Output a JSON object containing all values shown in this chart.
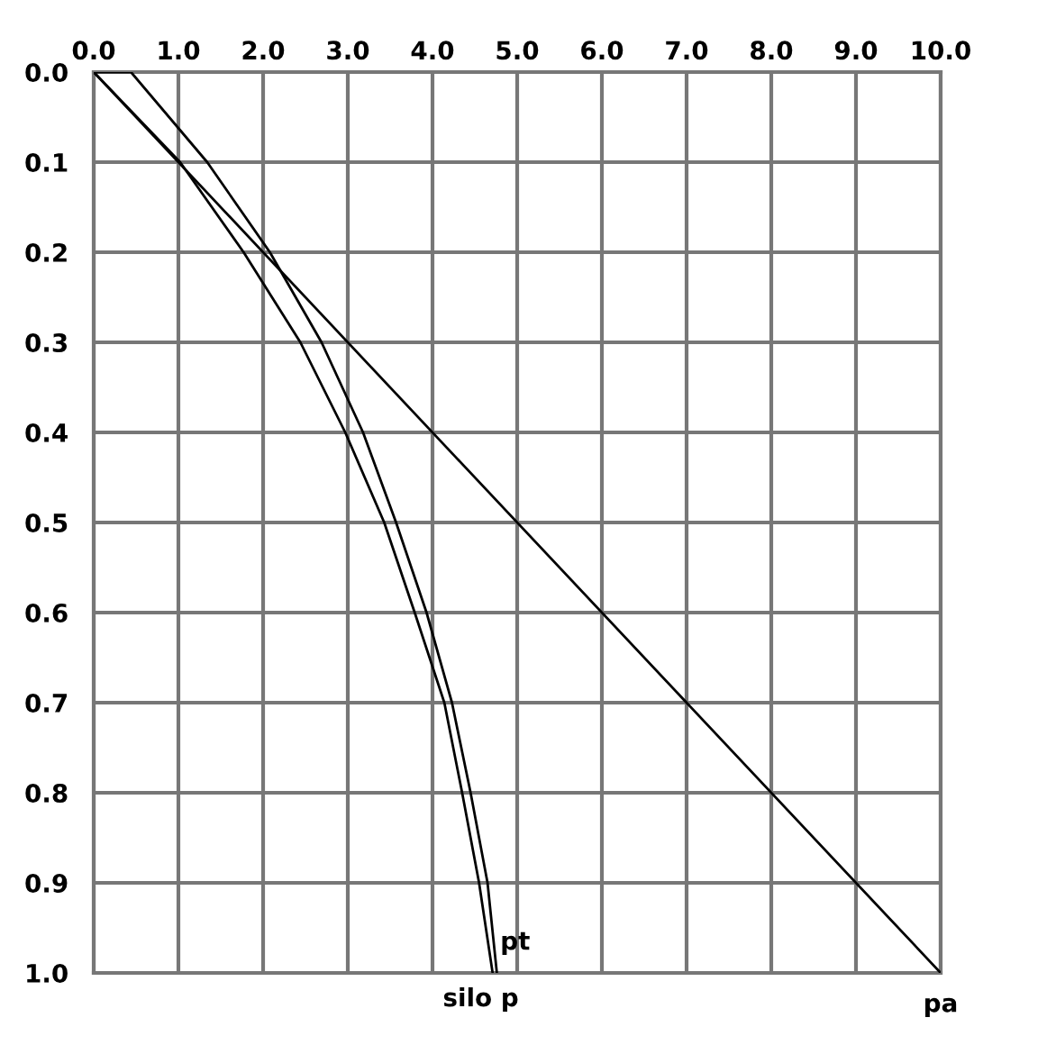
{
  "chart_data": {
    "type": "line",
    "xlim": [
      0,
      10
    ],
    "ylim": [
      1.0,
      0.0
    ],
    "xticks": [
      {
        "value": 0,
        "label": "0.0"
      },
      {
        "value": 1,
        "label": "1.0"
      },
      {
        "value": 2,
        "label": "2.0"
      },
      {
        "value": 3,
        "label": "3.0"
      },
      {
        "value": 4,
        "label": "4.0"
      },
      {
        "value": 5,
        "label": "5.0"
      },
      {
        "value": 6,
        "label": "6.0"
      },
      {
        "value": 7,
        "label": "7.0"
      },
      {
        "value": 8,
        "label": "8.0"
      },
      {
        "value": 9,
        "label": "9.0"
      },
      {
        "value": 10,
        "label": "10.0"
      }
    ],
    "yticks": [
      {
        "value": 0,
        "label": "0.0"
      },
      0.1,
      0.2,
      0.3,
      0.4,
      0.5,
      0.6,
      0.7,
      0.8,
      0.9,
      {
        "value": 1,
        "label": "1.0"
      }
    ],
    "grid": true,
    "legend": false,
    "marker": "none",
    "line_style": "solid",
    "series": [
      {
        "color": "#000000",
        "x": [
          0,
          0.44,
          1.34,
          2.08,
          2.69,
          3.18,
          3.57,
          3.93,
          4.23,
          4.45,
          4.65,
          4.76
        ],
        "values": [
          0,
          0,
          0.1,
          0.2,
          0.3,
          0.4,
          0.5,
          0.6,
          0.7,
          0.8,
          0.9,
          1.0
        ]
      },
      {
        "color": "#000000",
        "x": [
          0,
          1.02,
          1.77,
          2.44,
          2.97,
          3.43,
          3.79,
          4.14,
          4.35,
          4.55,
          4.71
        ],
        "values": [
          0,
          0.1,
          0.2,
          0.3,
          0.4,
          0.5,
          0.6,
          0.7,
          0.8,
          0.9,
          1.0
        ]
      },
      {
        "color": "#000000",
        "x": [
          0,
          10
        ],
        "values": [
          0,
          1.0
        ]
      }
    ],
    "annotations": [
      {
        "text": "pt",
        "x": 4.8,
        "y": 0.98
      },
      "silo p",
      {
        "text": "pa",
        "x": 10,
        "y": 1.0
      }
    ]
  }
}
